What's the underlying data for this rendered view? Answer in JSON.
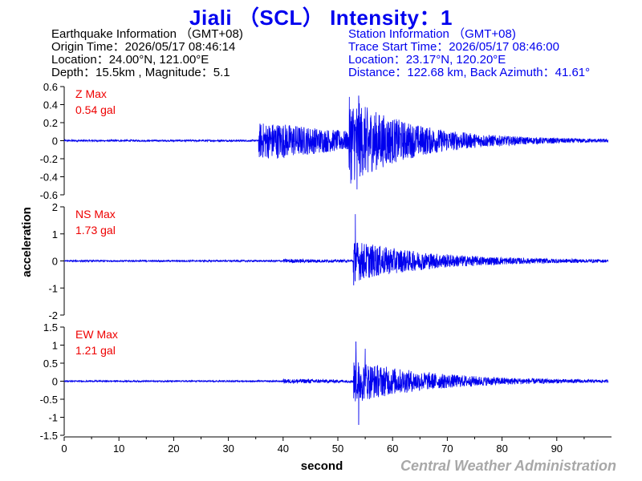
{
  "title": "Jiali （SCL） Intensity：1",
  "earthquake_info": {
    "heading": "Earthquake Information （GMT+08)",
    "origin_time": "Origin Time：2026/05/17 08:46:14",
    "location": "Location：24.00°N, 121.00°E",
    "depth_magnitude": "Depth：15.5km , Magnitude：5.1"
  },
  "station_info": {
    "heading": "Station Information （GMT+08)",
    "trace_start": "Trace Start Time：2026/05/17 08:46:00",
    "location": "Location：23.17°N, 120.20°E",
    "distance": "Distance：122.68 km, Back Azimuth：41.61°"
  },
  "credit": "Central Weather Administration",
  "colors": {
    "trace": "#0000ee",
    "title": "#0000ee",
    "max_label": "#ee0000",
    "credit": "#a8a8a8"
  },
  "chart_data": {
    "type": "line",
    "xlabel": "second",
    "ylabel": "acceleration",
    "xlim": [
      0,
      100
    ],
    "xticks": [
      0,
      10,
      20,
      30,
      40,
      50,
      60,
      70,
      80,
      90
    ],
    "panels": [
      {
        "component": "Z",
        "max_label": "Z Max",
        "max_value": "0.54 gal",
        "ylim": [
          -0.6,
          0.6
        ],
        "yticks": [
          -0.6,
          -0.4,
          -0.2,
          0,
          0.2,
          0.4,
          0.6
        ],
        "ytick_labels": [
          "-0.6",
          "-0.4",
          "-0.2",
          "0",
          "0.2",
          "0.4",
          "0.6"
        ],
        "envelope": {
          "noise": 0.01,
          "p_onset": 35.5,
          "p_amp": 0.2,
          "s_onset": 52,
          "s_amp": 0.48,
          "s_decay": 12,
          "peaks": [
            [
              53.8,
              0.5
            ],
            [
              53.5,
              -0.54
            ],
            [
              55.5,
              -0.35
            ]
          ]
        }
      },
      {
        "component": "NS",
        "max_label": "NS Max",
        "max_value": "1.73 gal",
        "ylim": [
          -2,
          2
        ],
        "yticks": [
          -2,
          -1,
          0,
          1,
          2
        ],
        "ytick_labels": [
          "-2",
          "-1",
          "0",
          "1",
          "2"
        ],
        "envelope": {
          "noise": 0.03,
          "p_onset": 40,
          "p_amp": 0.07,
          "s_onset": 52.8,
          "s_amp": 0.75,
          "s_decay": 14,
          "peaks": [
            [
              53.2,
              1.73
            ],
            [
              52.9,
              -0.9
            ]
          ]
        }
      },
      {
        "component": "EW",
        "max_label": "EW Max",
        "max_value": "1.21 gal",
        "ylim": [
          -1.5,
          1.5
        ],
        "yticks": [
          -1.5,
          -1,
          -0.5,
          0,
          0.5,
          1,
          1.5
        ],
        "ytick_labels": [
          "-1.5",
          "-1",
          "-0.5",
          "0",
          "0.5",
          "1",
          "1.5"
        ],
        "envelope": {
          "noise": 0.02,
          "p_onset": 40,
          "p_amp": 0.06,
          "s_onset": 52.8,
          "s_amp": 0.6,
          "s_decay": 14,
          "peaks": [
            [
              53.3,
              1.1
            ],
            [
              53.8,
              -1.21
            ],
            [
              55,
              0.9
            ]
          ]
        }
      }
    ]
  }
}
